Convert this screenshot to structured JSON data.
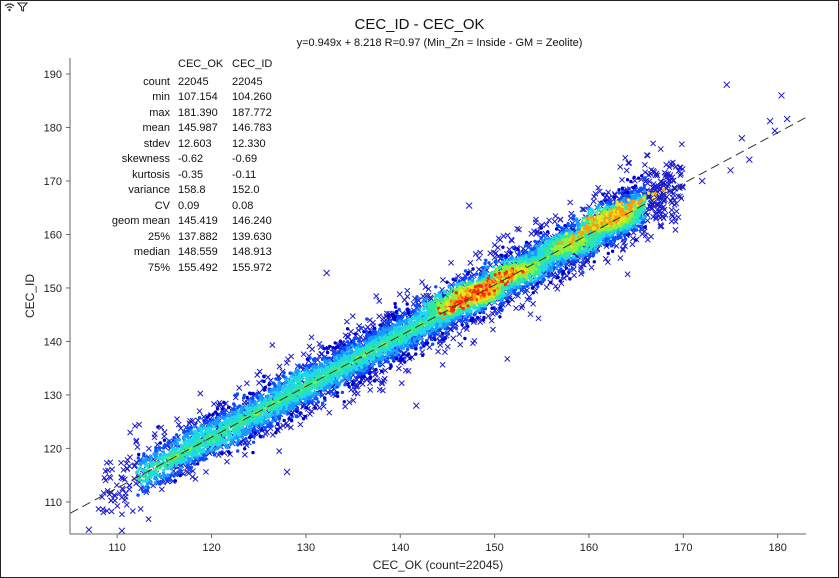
{
  "chart_data": {
    "type": "scatter",
    "title": "CEC_ID - CEC_OK",
    "subtitle": "y=0.949x + 8.218  R=0.97  (Min_Zn = Inside - GM = Zeolite)",
    "xlabel": "CEC_OK (count=22045)",
    "ylabel": "CEC_ID",
    "xlim": [
      105,
      183
    ],
    "ylim": [
      104,
      193
    ],
    "x_ticks": [
      110,
      120,
      130,
      140,
      150,
      160,
      170,
      180
    ],
    "y_ticks": [
      110,
      120,
      130,
      140,
      150,
      160,
      170,
      180,
      190
    ],
    "grid": false,
    "regression": {
      "slope": 0.949,
      "intercept": 8.218,
      "r": 0.97
    },
    "point_density_colors": [
      "#0000cc",
      "#0a4dff",
      "#1a9bff",
      "#1fd8e8",
      "#2ee8a0",
      "#8ef03a",
      "#e8e81a",
      "#ff9a10",
      "#ff2a0a"
    ],
    "marker_color": "#1a1acc",
    "outliers": [
      {
        "x": 174.6,
        "y": 188.0
      },
      {
        "x": 180.4,
        "y": 186.0
      },
      {
        "x": 181.0,
        "y": 181.6
      },
      {
        "x": 179.2,
        "y": 181.2
      },
      {
        "x": 179.7,
        "y": 179.4
      },
      {
        "x": 176.2,
        "y": 178.0
      },
      {
        "x": 177.0,
        "y": 174.0
      },
      {
        "x": 132.2,
        "y": 152.8
      },
      {
        "x": 147.3,
        "y": 165.4
      },
      {
        "x": 141.7,
        "y": 128.0
      },
      {
        "x": 128.0,
        "y": 115.6
      },
      {
        "x": 107.0,
        "y": 104.8
      },
      {
        "x": 110.5,
        "y": 104.6
      },
      {
        "x": 172.0,
        "y": 170.0
      },
      {
        "x": 175.0,
        "y": 172.0
      }
    ],
    "density_clusters": [
      {
        "x": 148,
        "y": 149,
        "level": 8
      },
      {
        "x": 162,
        "y": 163,
        "level": 7
      },
      {
        "x": 152,
        "y": 153,
        "level": 6
      },
      {
        "x": 145,
        "y": 147,
        "level": 5
      },
      {
        "x": 158,
        "y": 158,
        "level": 5
      },
      {
        "x": 130,
        "y": 133,
        "level": 3
      },
      {
        "x": 120,
        "y": 122,
        "level": 3
      }
    ]
  },
  "stats": {
    "columns": [
      "CEC_OK",
      "CEC_ID"
    ],
    "rows": [
      {
        "label": "count",
        "a": "22045",
        "b": "22045"
      },
      {
        "label": "min",
        "a": "107.154",
        "b": "104.260"
      },
      {
        "label": "max",
        "a": "181.390",
        "b": "187.772"
      },
      {
        "label": "mean",
        "a": "145.987",
        "b": "146.783"
      },
      {
        "label": "stdev",
        "a": "12.603",
        "b": "12.330"
      },
      {
        "label": "skewness",
        "a": "-0.62",
        "b": "-0.69"
      },
      {
        "label": "kurtosis",
        "a": "-0.35",
        "b": "-0.11"
      },
      {
        "label": "variance",
        "a": "158.8",
        "b": "152.0"
      },
      {
        "label": "CV",
        "a": "0.09",
        "b": "0.08"
      },
      {
        "label": "geom mean",
        "a": "145.419",
        "b": "146.240"
      },
      {
        "label": "25%",
        "a": "137.882",
        "b": "139.630"
      },
      {
        "label": "median",
        "a": "148.559",
        "b": "148.913"
      },
      {
        "label": "75%",
        "a": "155.492",
        "b": "155.972"
      }
    ]
  },
  "toolbar": {
    "icons": [
      "wireless-icon",
      "filter-icon"
    ]
  }
}
